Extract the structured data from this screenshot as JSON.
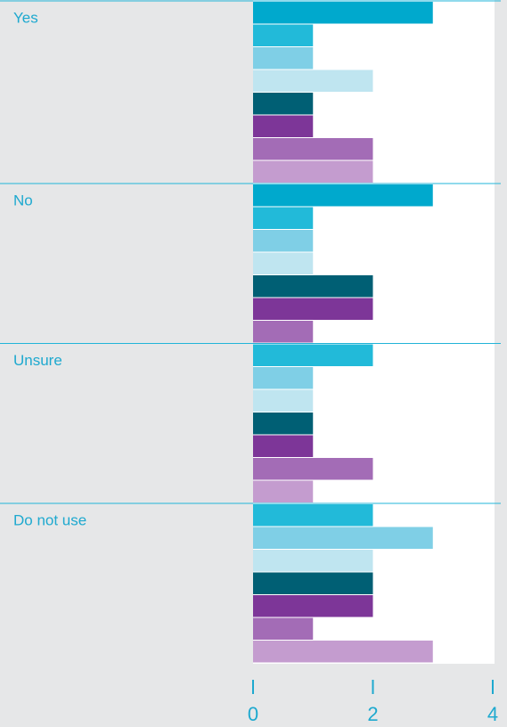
{
  "chart_data": {
    "type": "bar",
    "orientation": "horizontal",
    "categories": [
      "Yes",
      "No",
      "Unsure",
      "Do not use"
    ],
    "series": [
      {
        "color": "#00a9cd",
        "values": [
          3,
          3,
          null,
          null
        ]
      },
      {
        "color": "#22bad9",
        "values": [
          1,
          1,
          2,
          2
        ]
      },
      {
        "color": "#7fcfe6",
        "values": [
          1,
          1,
          1,
          3
        ]
      },
      {
        "color": "#bfe5f0",
        "values": [
          2,
          1,
          1,
          2
        ]
      },
      {
        "color": "#005f74",
        "values": [
          1,
          2,
          1,
          2
        ]
      },
      {
        "color": "#7d3698",
        "values": [
          1,
          2,
          1,
          2
        ]
      },
      {
        "color": "#a36cb6",
        "values": [
          2,
          1,
          2,
          1
        ]
      },
      {
        "color": "#c49ccf",
        "values": [
          2,
          null,
          1,
          3
        ]
      }
    ],
    "xlim": [
      0,
      4
    ],
    "xticks": [
      0,
      2,
      4
    ]
  }
}
